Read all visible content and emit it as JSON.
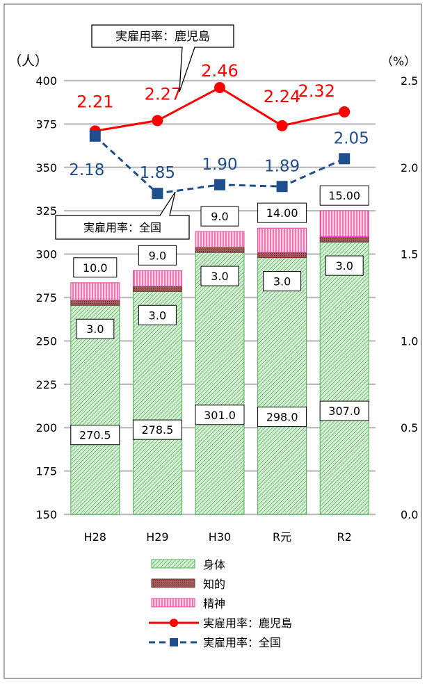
{
  "chart_data": {
    "type": "bar",
    "categories": [
      "H28",
      "H29",
      "H30",
      "R元",
      "R2"
    ],
    "ylabel_left": "（人）",
    "ylabel_right": "（%）",
    "y_left_range": [
      150,
      400
    ],
    "y_left_ticks": [
      "150",
      "175",
      "200",
      "225",
      "250",
      "275",
      "300",
      "325",
      "350",
      "375",
      "400"
    ],
    "y_right_range": [
      0,
      2.5
    ],
    "y_right_ticks": [
      "0.0",
      "0.5",
      "1.0",
      "1.5",
      "2.0",
      "2.5"
    ],
    "grid": true,
    "legend_position": "bottom",
    "bar_series": [
      {
        "name": "身体",
        "values": [
          270.5,
          278.5,
          301.0,
          298.0,
          307.0
        ],
        "labels": [
          "270.5",
          "278.5",
          "301.0",
          "298.0",
          "307.0"
        ],
        "color": "#8fd08f"
      },
      {
        "name": "知的",
        "values": [
          3.0,
          3.0,
          3.0,
          3.0,
          3.0
        ],
        "labels": [
          "3.0",
          "3.0",
          "3.0",
          "3.0",
          "3.0"
        ],
        "color": "#b36b6b"
      },
      {
        "name": "精神",
        "values": [
          10.0,
          9.0,
          9.0,
          14.0,
          15.0
        ],
        "labels": [
          "10.0",
          "9.0",
          "9.0",
          "14.00",
          "15.00"
        ],
        "color": "#ffb3c6"
      }
    ],
    "line_series": [
      {
        "name": "実雇用率：鹿児島",
        "values": [
          2.21,
          2.27,
          2.46,
          2.24,
          2.32
        ],
        "labels": [
          "2.21",
          "2.27",
          "2.46",
          "2.24",
          "2.32"
        ],
        "color": "#ff0000"
      },
      {
        "name": "実雇用率：全国",
        "values": [
          2.18,
          1.85,
          1.9,
          1.89,
          2.05
        ],
        "labels": [
          "2.18",
          "1.85",
          "1.90",
          "1.89",
          "2.05"
        ],
        "color": "#1f4e8c"
      }
    ],
    "callouts": {
      "kagoshima": "実雇用率：鹿児島",
      "national": "実雇用率：全国"
    },
    "legend": [
      {
        "label": "身体",
        "kind": "bar"
      },
      {
        "label": "知的",
        "kind": "bar"
      },
      {
        "label": "精神",
        "kind": "bar"
      },
      {
        "label": "実雇用率：鹿児島",
        "kind": "line"
      },
      {
        "label": "実雇用率：全国",
        "kind": "line"
      }
    ]
  }
}
